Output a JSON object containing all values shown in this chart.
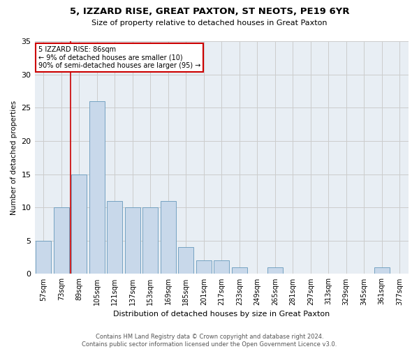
{
  "title": "5, IZZARD RISE, GREAT PAXTON, ST NEOTS, PE19 6YR",
  "subtitle": "Size of property relative to detached houses in Great Paxton",
  "xlabel": "Distribution of detached houses by size in Great Paxton",
  "ylabel": "Number of detached properties",
  "footer_line1": "Contains HM Land Registry data © Crown copyright and database right 2024.",
  "footer_line2": "Contains public sector information licensed under the Open Government Licence v3.0.",
  "bar_color": "#c8d8ea",
  "bar_edgecolor": "#6699bb",
  "grid_color": "#cccccc",
  "annotation_box_color": "#cc0000",
  "vline_color": "#cc0000",
  "ax_background_color": "#e8eef4",
  "fig_background_color": "#ffffff",
  "categories": [
    "57sqm",
    "73sqm",
    "89sqm",
    "105sqm",
    "121sqm",
    "137sqm",
    "153sqm",
    "169sqm",
    "185sqm",
    "201sqm",
    "217sqm",
    "233sqm",
    "249sqm",
    "265sqm",
    "281sqm",
    "297sqm",
    "313sqm",
    "329sqm",
    "345sqm",
    "361sqm",
    "377sqm"
  ],
  "values": [
    5,
    10,
    15,
    26,
    11,
    10,
    10,
    11,
    4,
    2,
    2,
    1,
    0,
    1,
    0,
    0,
    0,
    0,
    0,
    1,
    0
  ],
  "annotation_line1": "5 IZZARD RISE: 86sqm",
  "annotation_line2": "← 9% of detached houses are smaller (10)",
  "annotation_line3": "90% of semi-detached houses are larger (95) →",
  "vline_x_index": 1.5,
  "ylim": [
    0,
    35
  ],
  "yticks": [
    0,
    5,
    10,
    15,
    20,
    25,
    30,
    35
  ],
  "title_fontsize": 9.5,
  "subtitle_fontsize": 8,
  "xlabel_fontsize": 8,
  "ylabel_fontsize": 7.5,
  "tick_fontsize": 7,
  "annotation_fontsize": 7,
  "footer_fontsize": 6
}
